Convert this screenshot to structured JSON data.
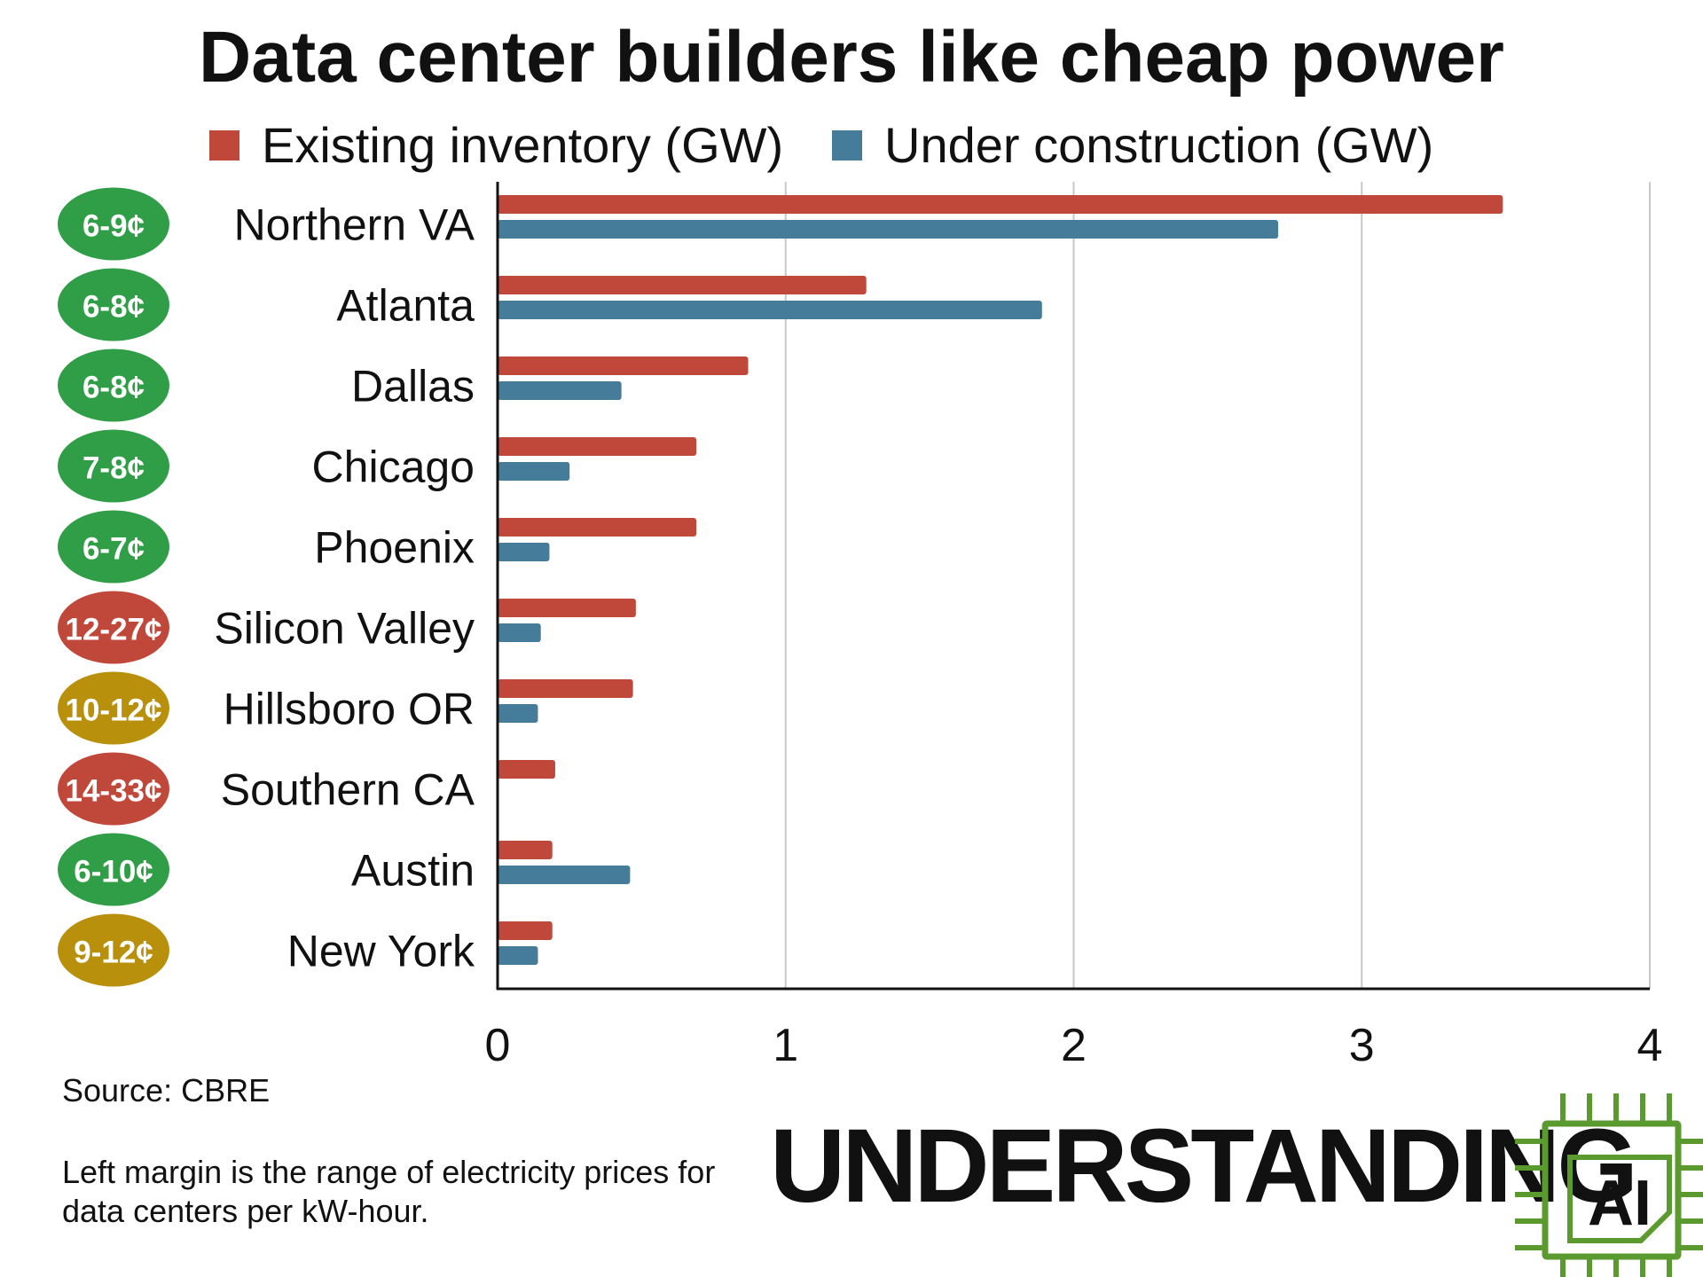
{
  "chart_data": {
    "type": "bar",
    "orientation": "horizontal",
    "title": "Data center builders like cheap power",
    "legend_position": "top",
    "categories": [
      "Northern VA",
      "Atlanta",
      "Dallas",
      "Chicago",
      "Phoenix",
      "Silicon Valley",
      "Hillsboro OR",
      "Southern CA",
      "Austin",
      "New York"
    ],
    "series": [
      {
        "name": "Existing inventory (GW)",
        "color": "#c0483a",
        "values": [
          3.49,
          1.28,
          0.87,
          0.69,
          0.69,
          0.48,
          0.47,
          0.2,
          0.19,
          0.19
        ]
      },
      {
        "name": "Under construction (GW)",
        "color": "#457c99",
        "values": [
          2.71,
          1.89,
          0.43,
          0.25,
          0.18,
          0.15,
          0.14,
          0.0,
          0.46,
          0.14
        ]
      }
    ],
    "xlim": [
      0,
      4
    ],
    "xticks": [
      0,
      1,
      2,
      3,
      4
    ],
    "xtick_labels": [
      "0",
      "1",
      "2",
      "3",
      "4"
    ],
    "grid": true,
    "price_badges": [
      {
        "label": "6-9¢",
        "color": "#2f9e47"
      },
      {
        "label": "6-8¢",
        "color": "#2f9e47"
      },
      {
        "label": "6-8¢",
        "color": "#2f9e47"
      },
      {
        "label": "7-8¢",
        "color": "#2f9e47"
      },
      {
        "label": "6-7¢",
        "color": "#2f9e47"
      },
      {
        "label": "12-27¢",
        "color": "#c0483a"
      },
      {
        "label": "10-12¢",
        "color": "#b8900c"
      },
      {
        "label": "14-33¢",
        "color": "#c0483a"
      },
      {
        "label": "6-10¢",
        "color": "#2f9e47"
      },
      {
        "label": "9-12¢",
        "color": "#b8900c"
      }
    ]
  },
  "footer": {
    "source": "Source: CBRE",
    "note": "Left margin is the range of electricity prices for data centers per kW-hour.",
    "brand_text": "UNDERSTANDING",
    "brand_logo_text": "AI",
    "brand_color": "#5b9a2e"
  }
}
